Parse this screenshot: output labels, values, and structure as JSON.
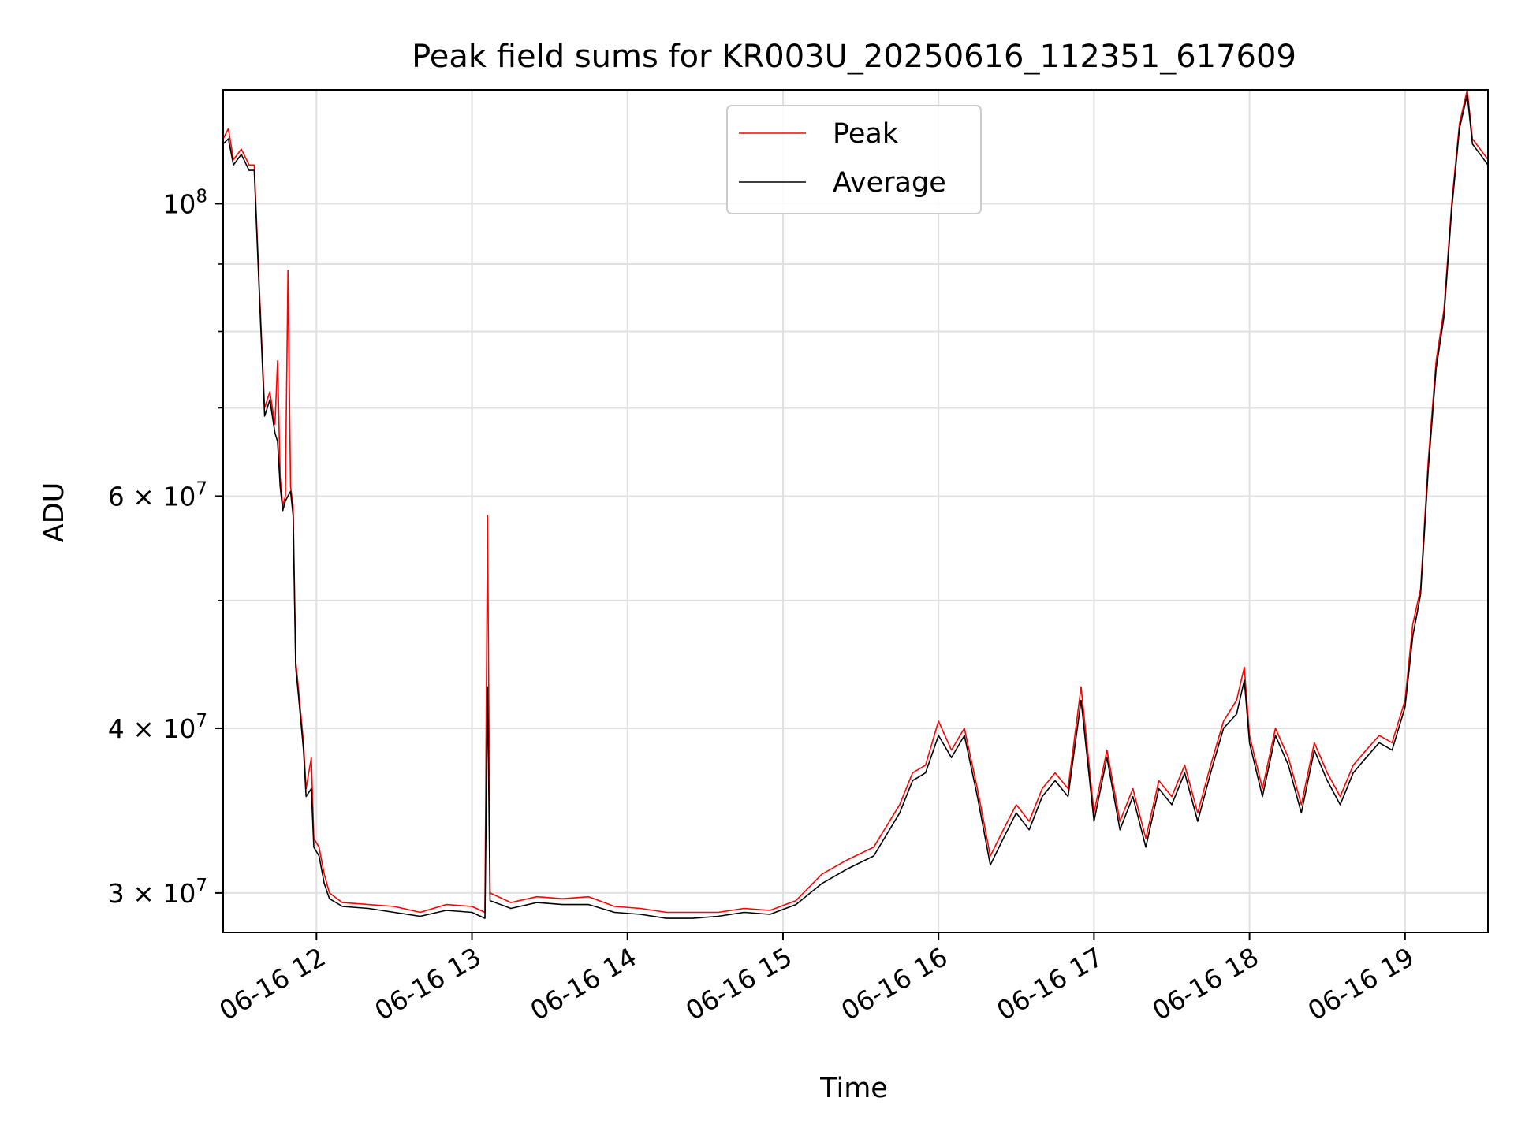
{
  "chart_data": {
    "type": "line",
    "title": "Peak field sums for KR003U_20250616_112351_617609",
    "xlabel": "Time",
    "ylabel": "ADU",
    "yscale": "log",
    "grid": true,
    "legend_position": "upper center",
    "xlim": [
      "2025-06-16 11:24",
      "2025-06-16 19:32"
    ],
    "ylim": [
      28000000,
      122000000
    ],
    "x_ticks": [
      {
        "value": "2025-06-16 12:00",
        "label": "06-16 12"
      },
      {
        "value": "2025-06-16 13:00",
        "label": "06-16 13"
      },
      {
        "value": "2025-06-16 14:00",
        "label": "06-16 14"
      },
      {
        "value": "2025-06-16 15:00",
        "label": "06-16 15"
      },
      {
        "value": "2025-06-16 16:00",
        "label": "06-16 16"
      },
      {
        "value": "2025-06-16 17:00",
        "label": "06-16 17"
      },
      {
        "value": "2025-06-16 18:00",
        "label": "06-16 18"
      },
      {
        "value": "2025-06-16 19:00",
        "label": "06-16 19"
      }
    ],
    "y_ticks": [
      {
        "value": 100000000,
        "mantissa": "",
        "exponent": "8",
        "base": "10"
      },
      {
        "value": 60000000,
        "mantissa": "6",
        "exponent": "7",
        "base": "10"
      },
      {
        "value": 40000000,
        "mantissa": "4",
        "exponent": "7",
        "base": "10"
      },
      {
        "value": 30000000,
        "mantissa": "3",
        "exponent": "7",
        "base": "10"
      }
    ],
    "y_minor_ticks": [
      50000000,
      70000000,
      80000000,
      90000000
    ],
    "series": [
      {
        "name": "Peak",
        "color": "#ff0000",
        "points": [
          [
            "2025-06-16 11:24",
            112000000
          ],
          [
            "2025-06-16 11:26",
            114000000
          ],
          [
            "2025-06-16 11:28",
            108000000
          ],
          [
            "2025-06-16 11:31",
            110000000
          ],
          [
            "2025-06-16 11:34",
            107000000
          ],
          [
            "2025-06-16 11:36",
            107000000
          ],
          [
            "2025-06-16 11:38",
            86000000
          ],
          [
            "2025-06-16 11:40",
            70000000
          ],
          [
            "2025-06-16 11:42",
            72000000
          ],
          [
            "2025-06-16 11:44",
            68000000
          ],
          [
            "2025-06-16 11:45",
            76000000
          ],
          [
            "2025-06-16 11:46",
            62000000
          ],
          [
            "2025-06-16 11:47",
            59000000
          ],
          [
            "2025-06-16 11:48",
            60000000
          ],
          [
            "2025-06-16 11:49",
            89000000
          ],
          [
            "2025-06-16 11:50",
            61000000
          ],
          [
            "2025-06-16 11:51",
            59000000
          ],
          [
            "2025-06-16 11:52",
            45000000
          ],
          [
            "2025-06-16 11:53",
            43000000
          ],
          [
            "2025-06-16 11:55",
            39000000
          ],
          [
            "2025-06-16 11:56",
            36000000
          ],
          [
            "2025-06-16 11:58",
            38000000
          ],
          [
            "2025-06-16 11:59",
            33000000
          ],
          [
            "2025-06-16 12:01",
            32500000
          ],
          [
            "2025-06-16 12:03",
            31000000
          ],
          [
            "2025-06-16 12:05",
            30000000
          ],
          [
            "2025-06-16 12:10",
            29500000
          ],
          [
            "2025-06-16 12:20",
            29400000
          ],
          [
            "2025-06-16 12:30",
            29300000
          ],
          [
            "2025-06-16 12:40",
            29000000
          ],
          [
            "2025-06-16 12:50",
            29400000
          ],
          [
            "2025-06-16 13:00",
            29300000
          ],
          [
            "2025-06-16 13:05",
            29000000
          ],
          [
            "2025-06-16 13:06",
            58000000
          ],
          [
            "2025-06-16 13:07",
            30000000
          ],
          [
            "2025-06-16 13:15",
            29500000
          ],
          [
            "2025-06-16 13:25",
            29800000
          ],
          [
            "2025-06-16 13:35",
            29700000
          ],
          [
            "2025-06-16 13:45",
            29800000
          ],
          [
            "2025-06-16 13:55",
            29300000
          ],
          [
            "2025-06-16 14:05",
            29200000
          ],
          [
            "2025-06-16 14:15",
            29000000
          ],
          [
            "2025-06-16 14:25",
            29000000
          ],
          [
            "2025-06-16 14:35",
            29000000
          ],
          [
            "2025-06-16 14:45",
            29200000
          ],
          [
            "2025-06-16 14:55",
            29100000
          ],
          [
            "2025-06-16 15:05",
            29600000
          ],
          [
            "2025-06-16 15:15",
            31000000
          ],
          [
            "2025-06-16 15:25",
            31800000
          ],
          [
            "2025-06-16 15:35",
            32500000
          ],
          [
            "2025-06-16 15:45",
            35000000
          ],
          [
            "2025-06-16 15:50",
            37000000
          ],
          [
            "2025-06-16 15:55",
            37500000
          ],
          [
            "2025-06-16 16:00",
            40500000
          ],
          [
            "2025-06-16 16:05",
            38500000
          ],
          [
            "2025-06-16 16:10",
            40000000
          ],
          [
            "2025-06-16 16:15",
            36000000
          ],
          [
            "2025-06-16 16:20",
            32000000
          ],
          [
            "2025-06-16 16:25",
            33500000
          ],
          [
            "2025-06-16 16:30",
            35000000
          ],
          [
            "2025-06-16 16:35",
            34000000
          ],
          [
            "2025-06-16 16:40",
            36000000
          ],
          [
            "2025-06-16 16:45",
            37000000
          ],
          [
            "2025-06-16 16:50",
            36000000
          ],
          [
            "2025-06-16 16:55",
            43000000
          ],
          [
            "2025-06-16 17:00",
            34500000
          ],
          [
            "2025-06-16 17:05",
            38500000
          ],
          [
            "2025-06-16 17:10",
            34000000
          ],
          [
            "2025-06-16 17:15",
            36000000
          ],
          [
            "2025-06-16 17:20",
            33000000
          ],
          [
            "2025-06-16 17:25",
            36500000
          ],
          [
            "2025-06-16 17:30",
            35500000
          ],
          [
            "2025-06-16 17:35",
            37500000
          ],
          [
            "2025-06-16 17:40",
            34500000
          ],
          [
            "2025-06-16 17:45",
            37500000
          ],
          [
            "2025-06-16 17:50",
            40500000
          ],
          [
            "2025-06-16 17:55",
            42000000
          ],
          [
            "2025-06-16 17:58",
            44500000
          ],
          [
            "2025-06-16 18:00",
            39500000
          ],
          [
            "2025-06-16 18:05",
            36000000
          ],
          [
            "2025-06-16 18:10",
            40000000
          ],
          [
            "2025-06-16 18:15",
            38000000
          ],
          [
            "2025-06-16 18:20",
            35000000
          ],
          [
            "2025-06-16 18:25",
            39000000
          ],
          [
            "2025-06-16 18:30",
            37000000
          ],
          [
            "2025-06-16 18:35",
            35500000
          ],
          [
            "2025-06-16 18:40",
            37500000
          ],
          [
            "2025-06-16 18:45",
            38500000
          ],
          [
            "2025-06-16 18:50",
            39500000
          ],
          [
            "2025-06-16 18:55",
            39000000
          ],
          [
            "2025-06-16 19:00",
            42000000
          ],
          [
            "2025-06-16 19:03",
            48000000
          ],
          [
            "2025-06-16 19:06",
            51000000
          ],
          [
            "2025-06-16 19:09",
            64000000
          ],
          [
            "2025-06-16 19:12",
            76000000
          ],
          [
            "2025-06-16 19:15",
            83000000
          ],
          [
            "2025-06-16 19:18",
            100000000
          ],
          [
            "2025-06-16 19:21",
            115000000
          ],
          [
            "2025-06-16 19:24",
            122000000
          ],
          [
            "2025-06-16 19:26",
            112000000
          ],
          [
            "2025-06-16 19:29",
            110000000
          ],
          [
            "2025-06-16 19:32",
            108000000
          ]
        ]
      },
      {
        "name": "Average",
        "color": "#000000",
        "points": [
          [
            "2025-06-16 11:24",
            111000000
          ],
          [
            "2025-06-16 11:26",
            112000000
          ],
          [
            "2025-06-16 11:28",
            107000000
          ],
          [
            "2025-06-16 11:31",
            109000000
          ],
          [
            "2025-06-16 11:34",
            106000000
          ],
          [
            "2025-06-16 11:36",
            106000000
          ],
          [
            "2025-06-16 11:38",
            85000000
          ],
          [
            "2025-06-16 11:40",
            69000000
          ],
          [
            "2025-06-16 11:42",
            71000000
          ],
          [
            "2025-06-16 11:44",
            67000000
          ],
          [
            "2025-06-16 11:45",
            66000000
          ],
          [
            "2025-06-16 11:46",
            61000000
          ],
          [
            "2025-06-16 11:47",
            58500000
          ],
          [
            "2025-06-16 11:48",
            59500000
          ],
          [
            "2025-06-16 11:49",
            60000000
          ],
          [
            "2025-06-16 11:50",
            60500000
          ],
          [
            "2025-06-16 11:51",
            58000000
          ],
          [
            "2025-06-16 11:52",
            44500000
          ],
          [
            "2025-06-16 11:53",
            42500000
          ],
          [
            "2025-06-16 11:55",
            38500000
          ],
          [
            "2025-06-16 11:56",
            35500000
          ],
          [
            "2025-06-16 11:58",
            36000000
          ],
          [
            "2025-06-16 11:59",
            32500000
          ],
          [
            "2025-06-16 12:01",
            32000000
          ],
          [
            "2025-06-16 12:03",
            30500000
          ],
          [
            "2025-06-16 12:05",
            29700000
          ],
          [
            "2025-06-16 12:10",
            29300000
          ],
          [
            "2025-06-16 12:20",
            29200000
          ],
          [
            "2025-06-16 12:30",
            29000000
          ],
          [
            "2025-06-16 12:40",
            28800000
          ],
          [
            "2025-06-16 12:50",
            29100000
          ],
          [
            "2025-06-16 13:00",
            29000000
          ],
          [
            "2025-06-16 13:05",
            28700000
          ],
          [
            "2025-06-16 13:06",
            43000000
          ],
          [
            "2025-06-16 13:07",
            29600000
          ],
          [
            "2025-06-16 13:15",
            29200000
          ],
          [
            "2025-06-16 13:25",
            29500000
          ],
          [
            "2025-06-16 13:35",
            29400000
          ],
          [
            "2025-06-16 13:45",
            29400000
          ],
          [
            "2025-06-16 13:55",
            29000000
          ],
          [
            "2025-06-16 14:05",
            28900000
          ],
          [
            "2025-06-16 14:15",
            28700000
          ],
          [
            "2025-06-16 14:25",
            28700000
          ],
          [
            "2025-06-16 14:35",
            28800000
          ],
          [
            "2025-06-16 14:45",
            29000000
          ],
          [
            "2025-06-16 14:55",
            28900000
          ],
          [
            "2025-06-16 15:05",
            29400000
          ],
          [
            "2025-06-16 15:15",
            30500000
          ],
          [
            "2025-06-16 15:25",
            31300000
          ],
          [
            "2025-06-16 15:35",
            32000000
          ],
          [
            "2025-06-16 15:45",
            34500000
          ],
          [
            "2025-06-16 15:50",
            36500000
          ],
          [
            "2025-06-16 15:55",
            37000000
          ],
          [
            "2025-06-16 16:00",
            39500000
          ],
          [
            "2025-06-16 16:05",
            38000000
          ],
          [
            "2025-06-16 16:10",
            39500000
          ],
          [
            "2025-06-16 16:15",
            35500000
          ],
          [
            "2025-06-16 16:20",
            31500000
          ],
          [
            "2025-06-16 16:25",
            33000000
          ],
          [
            "2025-06-16 16:30",
            34500000
          ],
          [
            "2025-06-16 16:35",
            33500000
          ],
          [
            "2025-06-16 16:40",
            35500000
          ],
          [
            "2025-06-16 16:45",
            36500000
          ],
          [
            "2025-06-16 16:50",
            35500000
          ],
          [
            "2025-06-16 16:55",
            42000000
          ],
          [
            "2025-06-16 17:00",
            34000000
          ],
          [
            "2025-06-16 17:05",
            38000000
          ],
          [
            "2025-06-16 17:10",
            33500000
          ],
          [
            "2025-06-16 17:15",
            35500000
          ],
          [
            "2025-06-16 17:20",
            32500000
          ],
          [
            "2025-06-16 17:25",
            36000000
          ],
          [
            "2025-06-16 17:30",
            35000000
          ],
          [
            "2025-06-16 17:35",
            37000000
          ],
          [
            "2025-06-16 17:40",
            34000000
          ],
          [
            "2025-06-16 17:45",
            37000000
          ],
          [
            "2025-06-16 17:50",
            40000000
          ],
          [
            "2025-06-16 17:55",
            41000000
          ],
          [
            "2025-06-16 17:58",
            43500000
          ],
          [
            "2025-06-16 18:00",
            39000000
          ],
          [
            "2025-06-16 18:05",
            35500000
          ],
          [
            "2025-06-16 18:10",
            39500000
          ],
          [
            "2025-06-16 18:15",
            37500000
          ],
          [
            "2025-06-16 18:20",
            34500000
          ],
          [
            "2025-06-16 18:25",
            38500000
          ],
          [
            "2025-06-16 18:30",
            36500000
          ],
          [
            "2025-06-16 18:35",
            35000000
          ],
          [
            "2025-06-16 18:40",
            37000000
          ],
          [
            "2025-06-16 18:45",
            38000000
          ],
          [
            "2025-06-16 18:50",
            39000000
          ],
          [
            "2025-06-16 18:55",
            38500000
          ],
          [
            "2025-06-16 19:00",
            41500000
          ],
          [
            "2025-06-16 19:03",
            47000000
          ],
          [
            "2025-06-16 19:06",
            50500000
          ],
          [
            "2025-06-16 19:09",
            63000000
          ],
          [
            "2025-06-16 19:12",
            75000000
          ],
          [
            "2025-06-16 19:15",
            82000000
          ],
          [
            "2025-06-16 19:18",
            99000000
          ],
          [
            "2025-06-16 19:21",
            114000000
          ],
          [
            "2025-06-16 19:24",
            121000000
          ],
          [
            "2025-06-16 19:26",
            111000000
          ],
          [
            "2025-06-16 19:29",
            109000000
          ],
          [
            "2025-06-16 19:32",
            107000000
          ]
        ]
      }
    ]
  }
}
